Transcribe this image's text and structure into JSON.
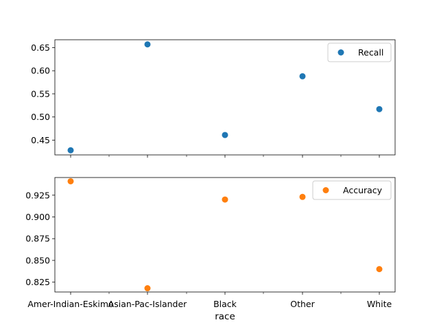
{
  "chart_data": [
    {
      "type": "scatter",
      "categories": [
        "Amer-Indian-Eskimo",
        "Asian-Pac-Islander",
        "Black",
        "Other",
        "White"
      ],
      "series": [
        {
          "name": "Recall",
          "values": [
            0.428,
            0.657,
            0.461,
            0.588,
            0.517
          ],
          "color": "#1f77b4"
        }
      ],
      "ylim": [
        0.418,
        0.667
      ],
      "yticks": [
        "0.45",
        "0.50",
        "0.55",
        "0.60",
        "0.65"
      ],
      "xlabel": "",
      "legend": "upper-right",
      "grid": false
    },
    {
      "type": "scatter",
      "categories": [
        "Amer-Indian-Eskimo",
        "Asian-Pac-Islander",
        "Black",
        "Other",
        "White"
      ],
      "series": [
        {
          "name": "Accuracy",
          "values": [
            0.941,
            0.818,
            0.92,
            0.923,
            0.84
          ],
          "color": "#ff7f0e"
        }
      ],
      "ylim": [
        0.8137,
        0.9453
      ],
      "yticks": [
        "0.825",
        "0.850",
        "0.875",
        "0.900",
        "0.925"
      ],
      "xlabel": "race",
      "legend": "upper-right",
      "grid": false
    }
  ]
}
